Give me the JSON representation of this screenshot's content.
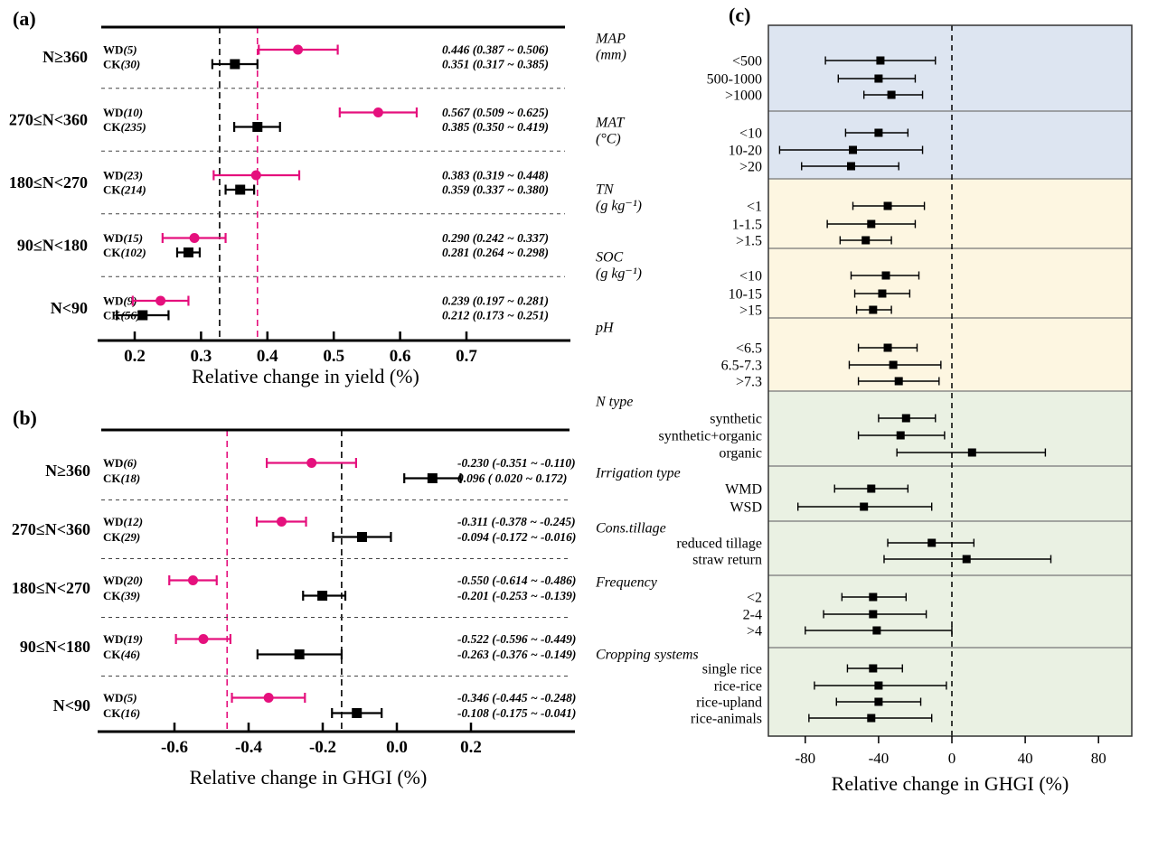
{
  "figure": {
    "description_labels": {
      "series_wd": "WD",
      "series_ck": "CK"
    }
  },
  "colors": {
    "wd_pink": "#e5107d",
    "ck_black": "#000000",
    "bg_blue": "#dde5f1",
    "bg_cream": "#fdf6e1",
    "bg_green": "#eaf1e3",
    "divider_gray": "#777777",
    "box_border": "#333333"
  },
  "chart_data": [
    {
      "id": "panel-a",
      "type": "scatter",
      "forest": true,
      "title": "(a)",
      "xlabel": "Relative change in yield (%)",
      "xlim": [
        0.15,
        0.85
      ],
      "xticks": [
        0.2,
        0.3,
        0.4,
        0.5,
        0.6,
        0.7
      ],
      "xtick_labels": [
        "0.2",
        "0.3",
        "0.4",
        "0.5",
        "0.6",
        "0.7"
      ],
      "grid": false,
      "ref_lines": [
        {
          "x": 0.328,
          "color": "#000000",
          "style": "dashed"
        },
        {
          "x": 0.385,
          "color": "#e5107d",
          "style": "dashed"
        }
      ],
      "series_colors": {
        "WD": "#e5107d",
        "CK": "#000000"
      },
      "groups": [
        {
          "label": "N≥360",
          "rows": [
            {
              "series": "WD",
              "n": "(5)",
              "est": 0.446,
              "lo": 0.387,
              "hi": 0.506,
              "value_text": "0.446 (0.387 ~ 0.506)"
            },
            {
              "series": "CK",
              "n": "(30)",
              "est": 0.351,
              "lo": 0.317,
              "hi": 0.385,
              "value_text": "0.351 (0.317 ~ 0.385)"
            }
          ]
        },
        {
          "label": "270≤N<360",
          "rows": [
            {
              "series": "WD",
              "n": "(10)",
              "est": 0.567,
              "lo": 0.509,
              "hi": 0.625,
              "value_text": "0.567 (0.509 ~ 0.625)"
            },
            {
              "series": "CK",
              "n": "(235)",
              "est": 0.385,
              "lo": 0.35,
              "hi": 0.419,
              "value_text": "0.385 (0.350 ~ 0.419)"
            }
          ]
        },
        {
          "label": "180≤N<270",
          "rows": [
            {
              "series": "WD",
              "n": "(23)",
              "est": 0.383,
              "lo": 0.319,
              "hi": 0.448,
              "value_text": "0.383 (0.319 ~ 0.448)"
            },
            {
              "series": "CK",
              "n": "(214)",
              "est": 0.359,
              "lo": 0.337,
              "hi": 0.38,
              "value_text": "0.359 (0.337 ~ 0.380)"
            }
          ]
        },
        {
          "label": "90≤N<180",
          "rows": [
            {
              "series": "WD",
              "n": "(15)",
              "est": 0.29,
              "lo": 0.242,
              "hi": 0.337,
              "value_text": "0.290 (0.242 ~ 0.337)"
            },
            {
              "series": "CK",
              "n": "(102)",
              "est": 0.281,
              "lo": 0.264,
              "hi": 0.298,
              "value_text": "0.281 (0.264 ~ 0.298)"
            }
          ]
        },
        {
          "label": "N<90",
          "rows": [
            {
              "series": "WD",
              "n": "(9)",
              "est": 0.239,
              "lo": 0.197,
              "hi": 0.281,
              "value_text": "0.239 (0.197 ~ 0.281)"
            },
            {
              "series": "CK",
              "n": "(56)",
              "est": 0.212,
              "lo": 0.173,
              "hi": 0.251,
              "value_text": "0.212 (0.173 ~ 0.251)"
            }
          ]
        }
      ]
    },
    {
      "id": "panel-b",
      "type": "scatter",
      "forest": true,
      "title": "(b)",
      "xlabel": "Relative change in GHGI (%)",
      "xlim": [
        -0.8,
        0.47
      ],
      "xticks": [
        -0.6,
        -0.4,
        -0.2,
        0.0,
        0.2
      ],
      "xtick_labels": [
        "-0.6",
        "-0.4",
        "-0.2",
        "0.0",
        "0.2"
      ],
      "grid": false,
      "ref_lines": [
        {
          "x": -0.458,
          "color": "#e5107d",
          "style": "dashed"
        },
        {
          "x": -0.149,
          "color": "#000000",
          "style": "dashed"
        }
      ],
      "series_colors": {
        "WD": "#e5107d",
        "CK": "#000000"
      },
      "groups": [
        {
          "label": "N≥360",
          "rows": [
            {
              "series": "WD",
              "n": "(6)",
              "est": -0.23,
              "lo": -0.351,
              "hi": -0.11,
              "value_text": "-0.230 (-0.351 ~ -0.110)"
            },
            {
              "series": "CK",
              "n": "(18)",
              "est": 0.096,
              "lo": 0.02,
              "hi": 0.172,
              "value_text": "0.096 ( 0.020 ~  0.172)"
            }
          ]
        },
        {
          "label": "270≤N<360",
          "rows": [
            {
              "series": "WD",
              "n": "(12)",
              "est": -0.311,
              "lo": -0.378,
              "hi": -0.245,
              "value_text": "-0.311 (-0.378 ~ -0.245)"
            },
            {
              "series": "CK",
              "n": "(29)",
              "est": -0.094,
              "lo": -0.172,
              "hi": -0.016,
              "value_text": "-0.094 (-0.172 ~ -0.016)"
            }
          ]
        },
        {
          "label": "180≤N<270",
          "rows": [
            {
              "series": "WD",
              "n": "(20)",
              "est": -0.55,
              "lo": -0.614,
              "hi": -0.486,
              "value_text": "-0.550 (-0.614 ~ -0.486)"
            },
            {
              "series": "CK",
              "n": "(39)",
              "est": -0.201,
              "lo": -0.253,
              "hi": -0.139,
              "value_text": "-0.201 (-0.253 ~ -0.139)"
            }
          ]
        },
        {
          "label": "90≤N<180",
          "rows": [
            {
              "series": "WD",
              "n": "(19)",
              "est": -0.522,
              "lo": -0.596,
              "hi": -0.449,
              "value_text": "-0.522 (-0.596 ~ -0.449)"
            },
            {
              "series": "CK",
              "n": "(46)",
              "est": -0.263,
              "lo": -0.376,
              "hi": -0.149,
              "value_text": "-0.263 (-0.376 ~ -0.149)"
            }
          ]
        },
        {
          "label": "N<90",
          "rows": [
            {
              "series": "WD",
              "n": "(5)",
              "est": -0.346,
              "lo": -0.445,
              "hi": -0.248,
              "value_text": "-0.346 (-0.445 ~ -0.248)"
            },
            {
              "series": "CK",
              "n": "(16)",
              "est": -0.108,
              "lo": -0.175,
              "hi": -0.041,
              "value_text": "-0.108 (-0.175 ~ -0.041)"
            }
          ]
        }
      ]
    },
    {
      "id": "panel-c",
      "type": "scatter",
      "forest": true,
      "title": "(c)",
      "xlabel": "Relative change in GHGI (%)",
      "xlim": [
        -100,
        98
      ],
      "xticks": [
        -80,
        -40,
        0,
        40,
        80
      ],
      "xtick_labels": [
        "-80",
        "-40",
        "0",
        "40",
        "80"
      ],
      "grid": false,
      "ref_lines": [
        {
          "x": 0,
          "color": "#000000",
          "style": "dashed"
        }
      ],
      "sections": [
        {
          "header": "MAP",
          "unit": "(mm)",
          "bg": "#dde5f1",
          "rows": [
            {
              "label": "<500",
              "est": -39,
              "lo": -69,
              "hi": -9
            },
            {
              "label": "500-1000",
              "est": -40,
              "lo": -62,
              "hi": -20
            },
            {
              "label": ">1000",
              "est": -33,
              "lo": -48,
              "hi": -16
            }
          ]
        },
        {
          "header": "MAT",
          "unit": "(°C)",
          "bg": "#dde5f1",
          "rows": [
            {
              "label": "<10",
              "est": -40,
              "lo": -58,
              "hi": -24
            },
            {
              "label": "10-20",
              "est": -54,
              "lo": -94,
              "hi": -16
            },
            {
              "label": ">20",
              "est": -55,
              "lo": -82,
              "hi": -29
            }
          ]
        },
        {
          "header": "TN",
          "unit": "(g kg⁻¹)",
          "bg": "#fdf6e1",
          "rows": [
            {
              "label": "<1",
              "est": -35,
              "lo": -54,
              "hi": -15
            },
            {
              "label": "1-1.5",
              "est": -44,
              "lo": -68,
              "hi": -20
            },
            {
              "label": ">1.5",
              "est": -47,
              "lo": -61,
              "hi": -33
            }
          ]
        },
        {
          "header": "SOC",
          "unit": "(g kg⁻¹)",
          "bg": "#fdf6e1",
          "rows": [
            {
              "label": "<10",
              "est": -36,
              "lo": -55,
              "hi": -18
            },
            {
              "label": "10-15",
              "est": -38,
              "lo": -53,
              "hi": -23
            },
            {
              "label": ">15",
              "est": -43,
              "lo": -52,
              "hi": -33
            }
          ]
        },
        {
          "header": "pH",
          "unit": "",
          "bg": "#fdf6e1",
          "rows": [
            {
              "label": "<6.5",
              "est": -35,
              "lo": -51,
              "hi": -19
            },
            {
              "label": "6.5-7.3",
              "est": -32,
              "lo": -56,
              "hi": -6
            },
            {
              "label": ">7.3",
              "est": -29,
              "lo": -51,
              "hi": -7
            }
          ]
        },
        {
          "header": "N type",
          "unit": "",
          "bg": "#eaf1e3",
          "rows": [
            {
              "label": "synthetic",
              "est": -25,
              "lo": -40,
              "hi": -9
            },
            {
              "label": "synthetic+organic",
              "est": -28,
              "lo": -51,
              "hi": -4
            },
            {
              "label": "organic",
              "est": 11,
              "lo": -30,
              "hi": 51
            }
          ]
        },
        {
          "header": "Irrigation type",
          "unit": "",
          "bg": "#eaf1e3",
          "rows": [
            {
              "label": "WMD",
              "est": -44,
              "lo": -64,
              "hi": -24
            },
            {
              "label": "WSD",
              "est": -48,
              "lo": -84,
              "hi": -11
            }
          ]
        },
        {
          "header": "Cons.tillage",
          "unit": "",
          "bg": "#eaf1e3",
          "rows": [
            {
              "label": "reduced tillage",
              "est": -11,
              "lo": -35,
              "hi": 12
            },
            {
              "label": "straw return",
              "est": 8,
              "lo": -37,
              "hi": 54
            }
          ]
        },
        {
          "header": "Frequency",
          "unit": "",
          "bg": "#eaf1e3",
          "rows": [
            {
              "label": "<2",
              "est": -43,
              "lo": -60,
              "hi": -25
            },
            {
              "label": "2-4",
              "est": -43,
              "lo": -70,
              "hi": -14
            },
            {
              "label": ">4",
              "est": -41,
              "lo": -80,
              "hi": 0
            }
          ]
        },
        {
          "header": "Cropping systems",
          "unit": "",
          "bg": "#eaf1e3",
          "rows": [
            {
              "label": "single rice",
              "est": -43,
              "lo": -57,
              "hi": -27
            },
            {
              "label": "rice-rice",
              "est": -40,
              "lo": -75,
              "hi": -3
            },
            {
              "label": "rice-upland",
              "est": -40,
              "lo": -63,
              "hi": -17
            },
            {
              "label": "rice-animals",
              "est": -44,
              "lo": -78,
              "hi": -11
            }
          ]
        }
      ]
    }
  ]
}
